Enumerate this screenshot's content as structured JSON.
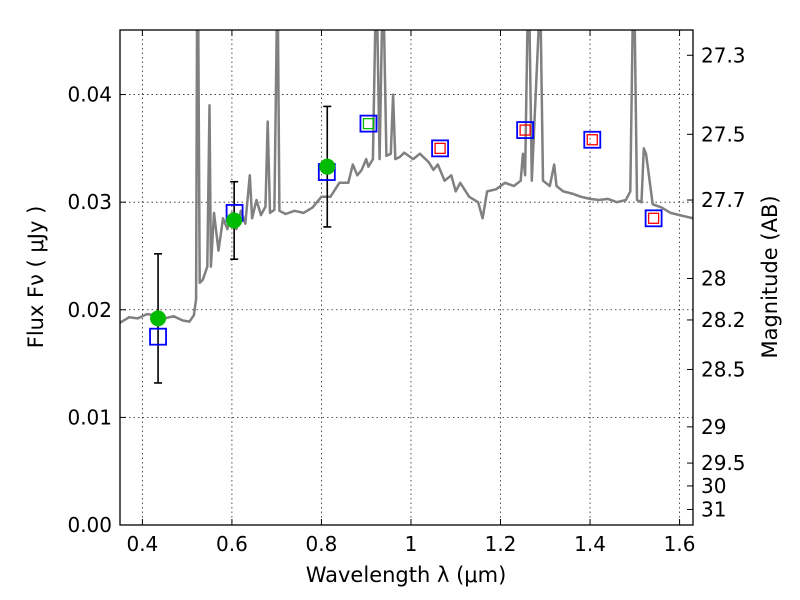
{
  "chart_data": {
    "type": "scatter",
    "title": "",
    "xlabel": "Wavelength  λ (μm)",
    "ylabel": "Flux  Fν  ( μJy )",
    "ylabel_right": "Magnitude (AB)",
    "xlim": [
      0.35,
      1.63
    ],
    "ylim": [
      0.0,
      0.046
    ],
    "grid": true,
    "x_ticks": [
      {
        "value": 0.4,
        "label": "0.4"
      },
      {
        "value": 0.6,
        "label": "0.6"
      },
      {
        "value": 0.8,
        "label": "0.8"
      },
      {
        "value": 1.0,
        "label": "1"
      },
      {
        "value": 1.2,
        "label": "1.2"
      },
      {
        "value": 1.4,
        "label": "1.4"
      },
      {
        "value": 1.6,
        "label": "1.6"
      }
    ],
    "y_ticks": [
      {
        "value": 0.0,
        "label": "0.00"
      },
      {
        "value": 0.01,
        "label": "0.01"
      },
      {
        "value": 0.02,
        "label": "0.02"
      },
      {
        "value": 0.03,
        "label": "0.03"
      },
      {
        "value": 0.04,
        "label": "0.04"
      }
    ],
    "right_ticks": [
      {
        "value": 27.3,
        "label": "27.3"
      },
      {
        "value": 27.5,
        "label": "27.5"
      },
      {
        "value": 27.7,
        "label": "27.7"
      },
      {
        "value": 28,
        "label": "28"
      },
      {
        "value": 28.2,
        "label": "28.2"
      },
      {
        "value": 28.5,
        "label": "28.5"
      },
      {
        "value": 29,
        "label": "29"
      },
      {
        "value": 29.5,
        "label": "29.5"
      },
      {
        "value": 30,
        "label": "30"
      },
      {
        "value": 31,
        "label": "31"
      }
    ],
    "series": [
      {
        "type": "line",
        "color": "#808080",
        "points": [
          [
            0.35,
            0.0188
          ],
          [
            0.37,
            0.0193
          ],
          [
            0.39,
            0.0192
          ],
          [
            0.41,
            0.0196
          ],
          [
            0.43,
            0.0195
          ],
          [
            0.45,
            0.0192
          ],
          [
            0.47,
            0.0194
          ],
          [
            0.49,
            0.019
          ],
          [
            0.505,
            0.0189
          ],
          [
            0.515,
            0.0195
          ],
          [
            0.52,
            0.021
          ],
          [
            0.522,
            0.046
          ],
          [
            0.525,
            0.046
          ],
          [
            0.528,
            0.0225
          ],
          [
            0.535,
            0.0228
          ],
          [
            0.545,
            0.024
          ],
          [
            0.55,
            0.039
          ],
          [
            0.553,
            0.024
          ],
          [
            0.56,
            0.029
          ],
          [
            0.57,
            0.0255
          ],
          [
            0.58,
            0.0285
          ],
          [
            0.59,
            0.0275
          ],
          [
            0.6,
            0.029
          ],
          [
            0.61,
            0.0275
          ],
          [
            0.62,
            0.0292
          ],
          [
            0.63,
            0.028
          ],
          [
            0.64,
            0.0325
          ],
          [
            0.645,
            0.0285
          ],
          [
            0.655,
            0.0302
          ],
          [
            0.665,
            0.0288
          ],
          [
            0.675,
            0.0296
          ],
          [
            0.68,
            0.0375
          ],
          [
            0.685,
            0.029
          ],
          [
            0.695,
            0.0293
          ],
          [
            0.7,
            0.046
          ],
          [
            0.703,
            0.046
          ],
          [
            0.706,
            0.0292
          ],
          [
            0.72,
            0.0289
          ],
          [
            0.74,
            0.0292
          ],
          [
            0.76,
            0.029
          ],
          [
            0.78,
            0.0295
          ],
          [
            0.8,
            0.0305
          ],
          [
            0.82,
            0.0305
          ],
          [
            0.84,
            0.0318
          ],
          [
            0.86,
            0.0318
          ],
          [
            0.87,
            0.0335
          ],
          [
            0.88,
            0.0325
          ],
          [
            0.89,
            0.033
          ],
          [
            0.9,
            0.034
          ],
          [
            0.905,
            0.0333
          ],
          [
            0.915,
            0.034
          ],
          [
            0.92,
            0.046
          ],
          [
            0.925,
            0.046
          ],
          [
            0.93,
            0.034
          ],
          [
            0.935,
            0.046
          ],
          [
            0.94,
            0.046
          ],
          [
            0.945,
            0.0343
          ],
          [
            0.955,
            0.0345
          ],
          [
            0.96,
            0.04
          ],
          [
            0.965,
            0.034
          ],
          [
            0.975,
            0.0342
          ],
          [
            0.985,
            0.0346
          ],
          [
            0.995,
            0.0343
          ],
          [
            1.005,
            0.034
          ],
          [
            1.02,
            0.0345
          ],
          [
            1.04,
            0.0337
          ],
          [
            1.05,
            0.033
          ],
          [
            1.06,
            0.0335
          ],
          [
            1.075,
            0.032
          ],
          [
            1.09,
            0.0325
          ],
          [
            1.1,
            0.031
          ],
          [
            1.11,
            0.0318
          ],
          [
            1.13,
            0.0305
          ],
          [
            1.15,
            0.03
          ],
          [
            1.16,
            0.0285
          ],
          [
            1.17,
            0.031
          ],
          [
            1.19,
            0.0312
          ],
          [
            1.21,
            0.0318
          ],
          [
            1.23,
            0.0315
          ],
          [
            1.245,
            0.032
          ],
          [
            1.25,
            0.0345
          ],
          [
            1.255,
            0.0325
          ],
          [
            1.26,
            0.046
          ],
          [
            1.265,
            0.046
          ],
          [
            1.27,
            0.032
          ],
          [
            1.285,
            0.046
          ],
          [
            1.29,
            0.046
          ],
          [
            1.295,
            0.032
          ],
          [
            1.31,
            0.0315
          ],
          [
            1.32,
            0.0335
          ],
          [
            1.325,
            0.0315
          ],
          [
            1.34,
            0.031
          ],
          [
            1.36,
            0.0308
          ],
          [
            1.38,
            0.0305
          ],
          [
            1.4,
            0.0303
          ],
          [
            1.42,
            0.0302
          ],
          [
            1.44,
            0.0303
          ],
          [
            1.46,
            0.03
          ],
          [
            1.48,
            0.0302
          ],
          [
            1.49,
            0.031
          ],
          [
            1.495,
            0.046
          ],
          [
            1.5,
            0.046
          ],
          [
            1.505,
            0.0302
          ],
          [
            1.515,
            0.03
          ],
          [
            1.52,
            0.035
          ],
          [
            1.525,
            0.0345
          ],
          [
            1.53,
            0.033
          ],
          [
            1.54,
            0.0298
          ],
          [
            1.56,
            0.0295
          ],
          [
            1.58,
            0.029
          ],
          [
            1.6,
            0.0288
          ],
          [
            1.63,
            0.0285
          ]
        ]
      },
      {
        "type": "errorbar",
        "marker": "circle",
        "color": "#00bb00",
        "points": [
          {
            "x": 0.435,
            "y": 0.0192,
            "yerr": 0.006
          },
          {
            "x": 0.605,
            "y": 0.0283,
            "yerr": 0.0036
          },
          {
            "x": 0.813,
            "y": 0.0333,
            "yerr": 0.0056
          }
        ]
      },
      {
        "type": "scatter",
        "marker": "square",
        "color": "#0000ff",
        "points": [
          [
            0.435,
            0.0175
          ],
          [
            0.606,
            0.029
          ],
          [
            0.812,
            0.0328
          ],
          [
            0.905,
            0.0373
          ],
          [
            1.065,
            0.035
          ],
          [
            1.255,
            0.0367
          ],
          [
            1.405,
            0.0358
          ],
          [
            1.542,
            0.0285
          ]
        ]
      },
      {
        "type": "scatter",
        "marker": "square-small",
        "color": "#00bb00",
        "points": [
          [
            0.905,
            0.0373
          ]
        ]
      },
      {
        "type": "scatter",
        "marker": "square-small",
        "color": "#ff0000",
        "points": [
          [
            1.065,
            0.035
          ],
          [
            1.255,
            0.0367
          ],
          [
            1.405,
            0.0358
          ],
          [
            1.542,
            0.0285
          ]
        ]
      }
    ]
  }
}
